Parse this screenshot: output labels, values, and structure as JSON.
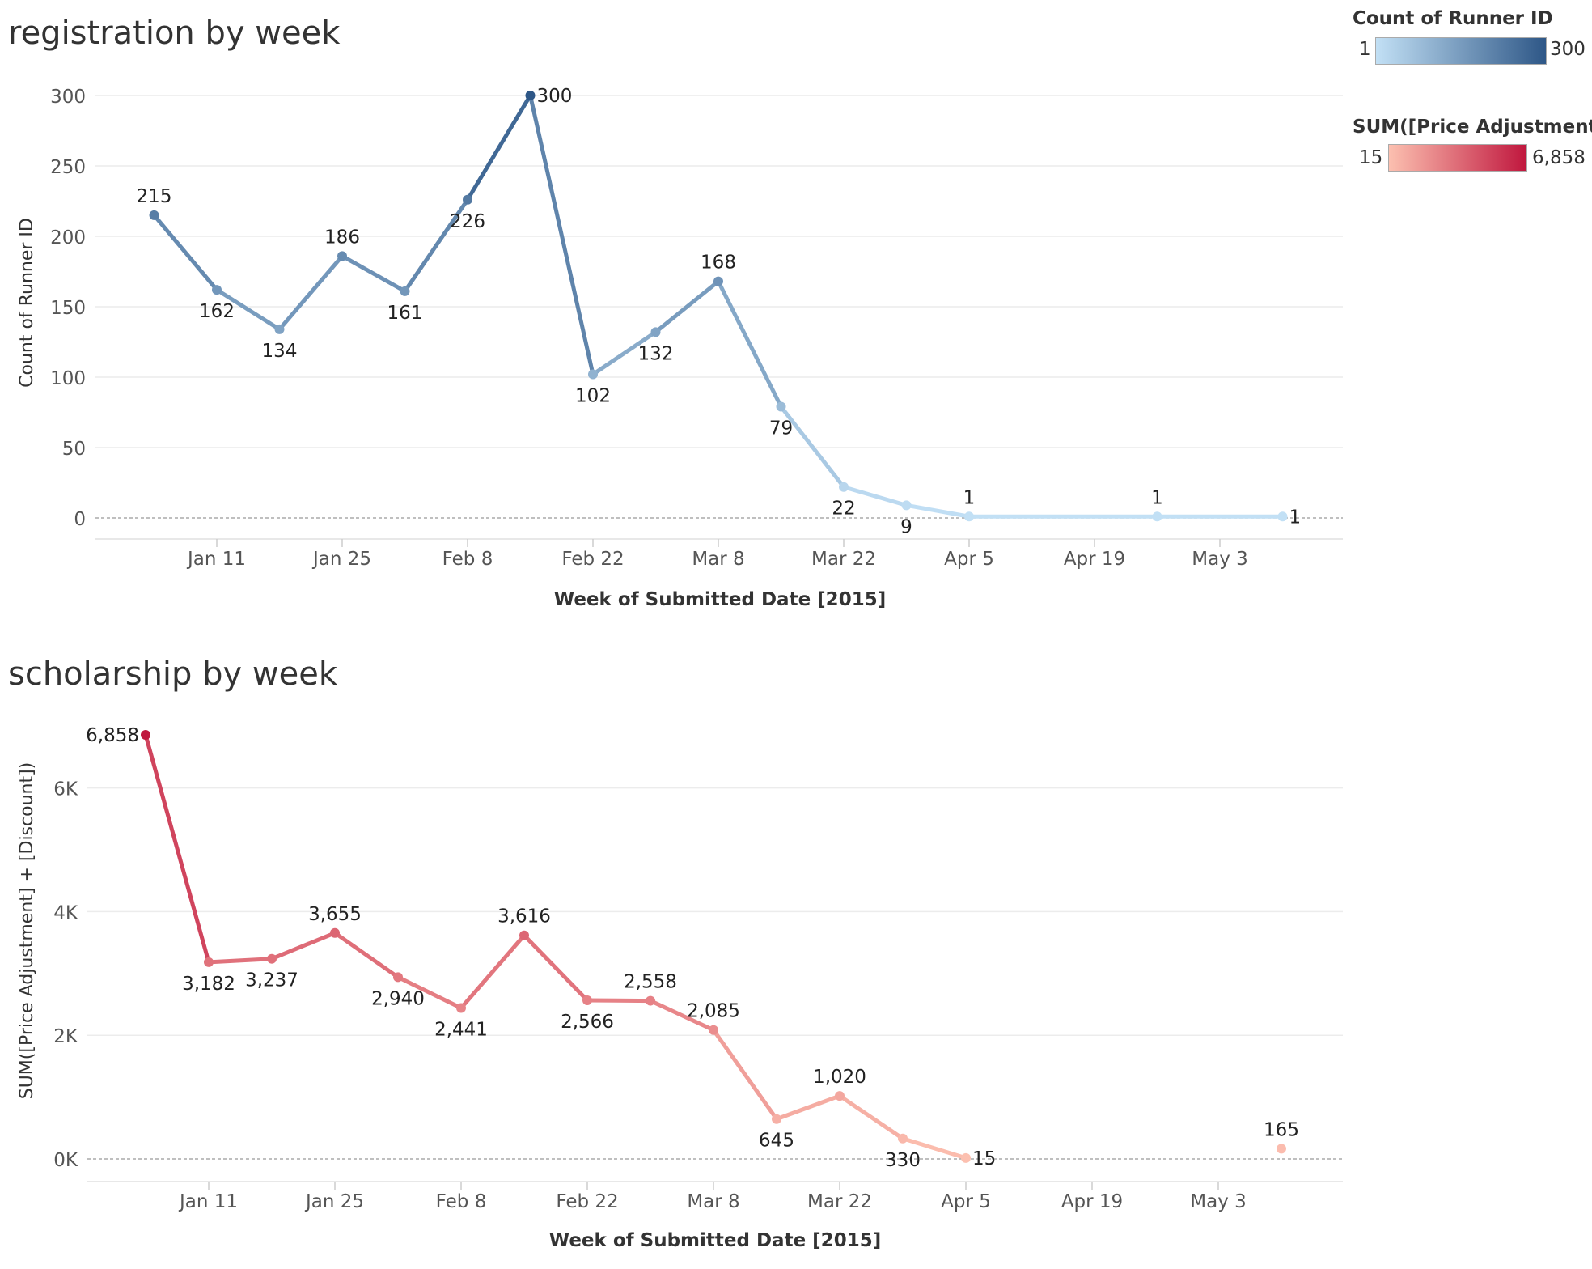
{
  "legends": [
    {
      "title": "Count of Runner ID",
      "min": "1",
      "max": "300",
      "colors": [
        "#c2e0f5",
        "#2e5787"
      ]
    },
    {
      "title": "SUM([Price Adjustment] ..",
      "min": "15",
      "max": "6,858",
      "colors": [
        "#fcc0b0",
        "#c0173e"
      ]
    }
  ],
  "chart_data": [
    {
      "type": "line",
      "title": "registration by week",
      "xlabel": "Week of Submitted Date [2015]",
      "ylabel": "Count of Runner ID",
      "x_ticks": [
        "Jan 11",
        "Jan 25",
        "Feb 8",
        "Feb 22",
        "Mar 8",
        "Mar 22",
        "Apr 5",
        "Apr 19",
        "May 3"
      ],
      "y_ticks": [
        "0",
        "50",
        "100",
        "150",
        "200",
        "250",
        "300"
      ],
      "ylim": [
        0,
        300
      ],
      "series": [
        {
          "points": [
            {
              "x": "Jan 4",
              "y": 215,
              "label": "215"
            },
            {
              "x": "Jan 11",
              "y": 162,
              "label": "162"
            },
            {
              "x": "Jan 18",
              "y": 134,
              "label": "134"
            },
            {
              "x": "Jan 25",
              "y": 186,
              "label": "186"
            },
            {
              "x": "Feb 1",
              "y": 161,
              "label": "161"
            },
            {
              "x": "Feb 8",
              "y": 226,
              "label": "226"
            },
            {
              "x": "Feb 15",
              "y": 300,
              "label": "300"
            },
            {
              "x": "Feb 22",
              "y": 102,
              "label": "102"
            },
            {
              "x": "Mar 1",
              "y": 132,
              "label": "132"
            },
            {
              "x": "Mar 8",
              "y": 168,
              "label": "168"
            },
            {
              "x": "Mar 15",
              "y": 79,
              "label": "79"
            },
            {
              "x": "Mar 22",
              "y": 22,
              "label": "22"
            },
            {
              "x": "Mar 29",
              "y": 9,
              "label": "9"
            },
            {
              "x": "Apr 5",
              "y": 1,
              "label": "1"
            },
            {
              "x": "Apr 26",
              "y": 1,
              "label": "1"
            },
            {
              "x": "May 10",
              "y": 1,
              "label": "1"
            }
          ]
        }
      ]
    },
    {
      "type": "line",
      "title": "scholarship by week",
      "xlabel": "Week of Submitted Date [2015]",
      "ylabel": "SUM([Price Adjustment] + [Discount])",
      "x_ticks": [
        "Jan 11",
        "Jan 25",
        "Feb 8",
        "Feb 22",
        "Mar 8",
        "Mar 22",
        "Apr 5",
        "Apr 19",
        "May 3"
      ],
      "y_ticks": [
        "0K",
        "2K",
        "4K",
        "6K"
      ],
      "ylim": [
        0,
        7000
      ],
      "series": [
        {
          "points": [
            {
              "x": "Jan 4",
              "y": 6858,
              "label": "6,858"
            },
            {
              "x": "Jan 11",
              "y": 3182,
              "label": "3,182"
            },
            {
              "x": "Jan 18",
              "y": 3237,
              "label": "3,237"
            },
            {
              "x": "Jan 25",
              "y": 3655,
              "label": "3,655"
            },
            {
              "x": "Feb 1",
              "y": 2940,
              "label": "2,940"
            },
            {
              "x": "Feb 8",
              "y": 2441,
              "label": "2,441"
            },
            {
              "x": "Feb 15",
              "y": 3616,
              "label": "3,616"
            },
            {
              "x": "Feb 22",
              "y": 2566,
              "label": "2,566"
            },
            {
              "x": "Mar 1",
              "y": 2558,
              "label": "2,558"
            },
            {
              "x": "Mar 8",
              "y": 2085,
              "label": "2,085"
            },
            {
              "x": "Mar 15",
              "y": 645,
              "label": "645"
            },
            {
              "x": "Mar 22",
              "y": 1020,
              "label": "1,020"
            },
            {
              "x": "Mar 29",
              "y": 330,
              "label": "330"
            },
            {
              "x": "Apr 5",
              "y": 15,
              "label": "15"
            },
            {
              "x": "May 10",
              "y": 165,
              "label": "165",
              "disconnected": true
            }
          ]
        }
      ]
    }
  ]
}
